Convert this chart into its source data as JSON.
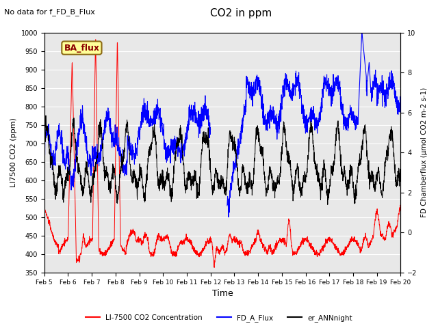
{
  "title": "CO2 in ppm",
  "top_left_text": "No data for f_FD_B_Flux",
  "box_label": "BA_flux",
  "xlabel": "Time",
  "ylabel_left": "LI7500 CO2 (ppm)",
  "ylabel_right": "FD Chamberflux (μmol CO2 m-2 s-1)",
  "ylim_left": [
    350,
    1000
  ],
  "ylim_right": [
    -2,
    10
  ],
  "yticks_left": [
    350,
    400,
    450,
    500,
    550,
    600,
    650,
    700,
    750,
    800,
    850,
    900,
    950,
    1000
  ],
  "yticks_right": [
    -2,
    0,
    2,
    4,
    6,
    8,
    10
  ],
  "xtick_labels": [
    "Feb 5",
    "Feb 6",
    "Feb 7",
    "Feb 8",
    "Feb 9",
    "Feb 10",
    "Feb 11",
    "Feb 12",
    "Feb 13",
    "Feb 14",
    "Feb 15",
    "Feb 16",
    "Feb 17",
    "Feb 18",
    "Feb 19",
    "Feb 20"
  ],
  "color_red": "#ff0000",
  "color_blue": "#0000ff",
  "color_black": "#000000",
  "legend_labels": [
    "LI-7500 CO2 Concentration",
    "FD_A_Flux",
    "er_ANNnight"
  ],
  "bg_color": "#e8e8e8",
  "grid_color": "#ffffff",
  "box_bg": "#ffff99",
  "box_border": "#8B6914"
}
